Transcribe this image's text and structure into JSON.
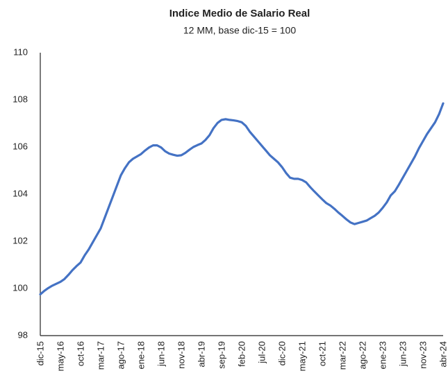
{
  "chart_data": {
    "type": "line",
    "title": "Indice Medio de Salario Real",
    "subtitle": "12 MM, base dic-15 = 100",
    "categories": [
      "dic-15",
      null,
      null,
      null,
      null,
      "may-16",
      null,
      null,
      null,
      null,
      "oct-16",
      null,
      null,
      null,
      null,
      "mar-17",
      null,
      null,
      null,
      null,
      "ago-17",
      null,
      null,
      null,
      null,
      "ene-18",
      null,
      null,
      null,
      null,
      "jun-18",
      null,
      null,
      null,
      null,
      "nov-18",
      null,
      null,
      null,
      null,
      "abr-19",
      null,
      null,
      null,
      null,
      "sep-19",
      null,
      null,
      null,
      null,
      "feb-20",
      null,
      null,
      null,
      null,
      "jul-20",
      null,
      null,
      null,
      null,
      "dic-20",
      null,
      null,
      null,
      null,
      "may-21",
      null,
      null,
      null,
      null,
      "oct-21",
      null,
      null,
      null,
      null,
      "mar-22",
      null,
      null,
      null,
      null,
      "ago-22",
      null,
      null,
      null,
      null,
      "ene-23",
      null,
      null,
      null,
      null,
      "jun-23",
      null,
      null,
      null,
      null,
      "nov-23",
      null,
      null,
      null,
      null,
      "abr-24"
    ],
    "values": [
      99.75,
      99.9,
      100.02,
      100.12,
      100.2,
      100.28,
      100.4,
      100.58,
      100.78,
      100.95,
      101.1,
      101.4,
      101.65,
      101.95,
      102.25,
      102.55,
      103.0,
      103.45,
      103.9,
      104.35,
      104.8,
      105.1,
      105.35,
      105.5,
      105.6,
      105.7,
      105.85,
      105.98,
      106.07,
      106.07,
      105.98,
      105.82,
      105.72,
      105.67,
      105.63,
      105.65,
      105.75,
      105.88,
      106.0,
      106.08,
      106.15,
      106.3,
      106.5,
      106.8,
      107.02,
      107.15,
      107.18,
      107.15,
      107.13,
      107.1,
      107.05,
      106.9,
      106.65,
      106.45,
      106.25,
      106.05,
      105.85,
      105.65,
      105.5,
      105.35,
      105.15,
      104.9,
      104.7,
      104.65,
      104.65,
      104.6,
      104.5,
      104.3,
      104.12,
      103.95,
      103.78,
      103.62,
      103.52,
      103.38,
      103.22,
      103.08,
      102.93,
      102.8,
      102.73,
      102.78,
      102.83,
      102.88,
      102.98,
      103.08,
      103.22,
      103.42,
      103.65,
      103.95,
      104.12,
      104.4,
      104.7,
      105.0,
      105.3,
      105.6,
      105.95,
      106.25,
      106.55,
      106.8,
      107.05,
      107.4,
      107.85
    ],
    "color": "#4472c4",
    "ylim": [
      98,
      110
    ],
    "yticks": [
      98,
      100,
      102,
      104,
      106,
      108,
      110
    ],
    "grid": false
  }
}
